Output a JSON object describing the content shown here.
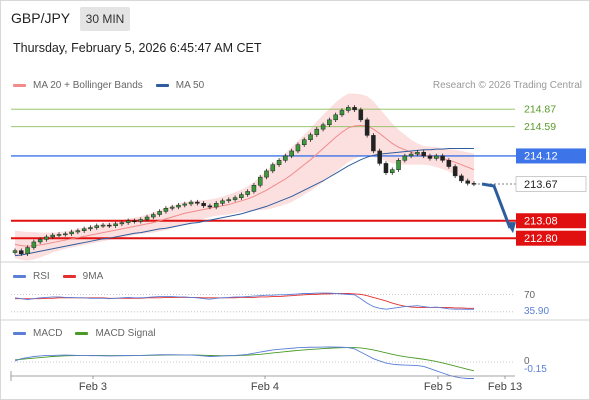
{
  "header": {
    "symbol": "GBP/JPY",
    "timeframe": "30 MIN",
    "datetime": "Thursday, February 5, 2026 6:45:47 AM CET"
  },
  "legend_main": [
    {
      "label": "MA 20 + Bollinger Bands",
      "color": "#f28a8a"
    },
    {
      "label": "MA 50",
      "color": "#2e5d9e"
    }
  ],
  "copyright": "Research © 2026 Trading Central",
  "legend_rsi": [
    {
      "label": "RSI",
      "color": "#5b7fd6"
    },
    {
      "label": "9MA",
      "color": "#e53030"
    }
  ],
  "legend_macd": [
    {
      "label": "MACD",
      "color": "#5b7fd6"
    },
    {
      "label": "MACD Signal",
      "color": "#4a9a28"
    }
  ],
  "chart_data": {
    "type": "candlestick",
    "x_ticks": [
      "Feb 3",
      "Feb 4",
      "Feb 5",
      "Feb 13"
    ],
    "ylim": [
      212.45,
      215.05
    ],
    "levels": [
      {
        "value": 214.87,
        "label": "214.87",
        "kind": "resistance-2",
        "color": "#8bbd5a"
      },
      {
        "value": 214.59,
        "label": "214.59",
        "kind": "resistance-1",
        "color": "#8bbd5a"
      },
      {
        "value": 214.12,
        "label": "214.12",
        "kind": "pivot",
        "color": "#3d74e8"
      },
      {
        "value": 213.08,
        "label": "213.08",
        "kind": "support-1",
        "color": "#e01010"
      },
      {
        "value": 212.8,
        "label": "212.80",
        "kind": "support-2",
        "color": "#e01010"
      }
    ],
    "last_price": {
      "value": 213.67,
      "label": "213.67"
    },
    "forecast_arrow": {
      "from": 213.67,
      "to": 212.93,
      "color": "#2e5d9e"
    },
    "close": [
      212.6,
      212.55,
      212.65,
      212.74,
      212.78,
      212.82,
      212.85,
      212.86,
      212.87,
      212.9,
      212.92,
      212.95,
      212.97,
      213.0,
      213.01,
      213.0,
      213.03,
      213.05,
      213.08,
      213.07,
      213.1,
      213.14,
      213.18,
      213.23,
      213.28,
      213.3,
      213.33,
      213.35,
      213.38,
      213.36,
      213.32,
      213.3,
      213.36,
      213.4,
      213.42,
      213.45,
      213.5,
      213.55,
      213.65,
      213.78,
      213.88,
      213.98,
      214.05,
      214.12,
      214.2,
      214.3,
      214.38,
      214.46,
      214.55,
      214.62,
      214.7,
      214.78,
      214.85,
      214.9,
      214.86,
      214.7,
      214.45,
      214.2,
      214.0,
      213.85,
      213.9,
      214.05,
      214.12,
      214.15,
      214.18,
      214.12,
      214.08,
      214.12,
      214.05,
      213.95,
      213.8,
      213.72,
      213.68,
      213.67
    ],
    "ma20": [
      212.7,
      212.68,
      212.67,
      212.68,
      212.69,
      212.71,
      212.73,
      212.75,
      212.77,
      212.79,
      212.81,
      212.83,
      212.85,
      212.87,
      212.89,
      212.91,
      212.93,
      212.95,
      212.97,
      212.99,
      213.01,
      213.03,
      213.05,
      213.08,
      213.11,
      213.14,
      213.17,
      213.2,
      213.22,
      213.24,
      213.26,
      213.28,
      213.3,
      213.32,
      213.34,
      213.37,
      213.4,
      213.43,
      213.47,
      213.52,
      213.57,
      213.63,
      213.69,
      213.75,
      213.82,
      213.9,
      213.98,
      214.06,
      214.15,
      214.24,
      214.33,
      214.42,
      214.5,
      214.57,
      214.6,
      214.61,
      214.6,
      214.55,
      214.48,
      214.4,
      214.32,
      214.26,
      214.22,
      214.18,
      214.15,
      214.13,
      214.12,
      214.1,
      214.08,
      214.05,
      214.02,
      213.98,
      213.94,
      213.9
    ],
    "bb_half_width": [
      0.22,
      0.23,
      0.23,
      0.22,
      0.2,
      0.18,
      0.16,
      0.15,
      0.14,
      0.14,
      0.14,
      0.14,
      0.14,
      0.14,
      0.14,
      0.14,
      0.14,
      0.14,
      0.14,
      0.14,
      0.14,
      0.15,
      0.16,
      0.17,
      0.18,
      0.18,
      0.18,
      0.18,
      0.17,
      0.16,
      0.15,
      0.14,
      0.14,
      0.15,
      0.16,
      0.17,
      0.18,
      0.2,
      0.23,
      0.27,
      0.31,
      0.35,
      0.38,
      0.41,
      0.44,
      0.46,
      0.48,
      0.5,
      0.52,
      0.54,
      0.55,
      0.56,
      0.56,
      0.55,
      0.52,
      0.5,
      0.48,
      0.45,
      0.4,
      0.36,
      0.32,
      0.28,
      0.24,
      0.2,
      0.17,
      0.15,
      0.15,
      0.16,
      0.17,
      0.18,
      0.2,
      0.22,
      0.24,
      0.26
    ],
    "ma50": [
      212.52,
      212.53,
      212.55,
      212.57,
      212.59,
      212.61,
      212.63,
      212.65,
      212.67,
      212.69,
      212.71,
      212.73,
      212.75,
      212.77,
      212.79,
      212.8,
      212.82,
      212.84,
      212.86,
      212.88,
      212.89,
      212.91,
      212.93,
      212.95,
      212.96,
      212.98,
      213.0,
      213.02,
      213.04,
      213.05,
      213.07,
      213.09,
      213.11,
      213.13,
      213.15,
      213.17,
      213.19,
      213.22,
      213.25,
      213.28,
      213.31,
      213.35,
      213.39,
      213.43,
      213.47,
      213.52,
      213.57,
      213.62,
      213.67,
      213.72,
      213.78,
      213.84,
      213.9,
      213.96,
      214.01,
      214.06,
      214.1,
      214.13,
      214.15,
      214.16,
      214.17,
      214.18,
      214.19,
      214.2,
      214.21,
      214.22,
      214.22,
      214.23,
      214.23,
      214.24,
      214.24,
      214.24,
      214.24,
      214.24
    ],
    "rsi": {
      "ylim": [
        0,
        100
      ],
      "levels": [
        {
          "value": 70,
          "label": "70"
        }
      ],
      "last_label": "35.90",
      "rsi": [
        62,
        60,
        58,
        60,
        62,
        63,
        64,
        64,
        63,
        63,
        62,
        62,
        61,
        61,
        61,
        60,
        61,
        62,
        63,
        62,
        62,
        63,
        64,
        65,
        65,
        65,
        64,
        64,
        63,
        62,
        60,
        59,
        61,
        62,
        63,
        64,
        64,
        65,
        66,
        67,
        68,
        68,
        69,
        69,
        70,
        71,
        72,
        72,
        73,
        73,
        73,
        72,
        71,
        70,
        69,
        60,
        50,
        42,
        38,
        36,
        38,
        40,
        42,
        43,
        44,
        42,
        40,
        41,
        39,
        37,
        36,
        36,
        35.9,
        35.9
      ],
      "ma9": [
        60,
        60,
        60,
        60,
        60,
        61,
        61,
        62,
        62,
        62,
        62,
        62,
        62,
        62,
        62,
        61,
        61,
        61,
        61,
        61,
        61,
        62,
        62,
        62,
        63,
        63,
        63,
        63,
        63,
        63,
        62,
        62,
        62,
        62,
        62,
        62,
        63,
        63,
        63,
        64,
        64,
        65,
        65,
        66,
        67,
        68,
        69,
        70,
        70,
        71,
        71,
        72,
        72,
        72,
        71,
        70,
        67,
        63,
        59,
        55,
        50,
        46,
        43,
        41,
        40,
        40,
        40,
        40,
        40,
        40,
        39,
        39,
        38,
        38
      ]
    },
    "macd": {
      "zero_label": "0",
      "last_label": "-0.15",
      "macd": [
        0.01,
        0.03,
        0.04,
        0.05,
        0.055,
        0.06,
        0.06,
        0.062,
        0.063,
        0.062,
        0.06,
        0.06,
        0.058,
        0.057,
        0.056,
        0.055,
        0.056,
        0.058,
        0.06,
        0.06,
        0.06,
        0.062,
        0.064,
        0.066,
        0.066,
        0.066,
        0.065,
        0.064,
        0.063,
        0.06,
        0.055,
        0.05,
        0.052,
        0.055,
        0.058,
        0.06,
        0.064,
        0.07,
        0.08,
        0.09,
        0.1,
        0.11,
        0.115,
        0.12,
        0.125,
        0.13,
        0.132,
        0.134,
        0.135,
        0.136,
        0.137,
        0.136,
        0.134,
        0.13,
        0.12,
        0.09,
        0.06,
        0.03,
        0.01,
        -0.01,
        -0.02,
        -0.025,
        -0.028,
        -0.03,
        -0.032,
        -0.04,
        -0.06,
        -0.08,
        -0.1,
        -0.12,
        -0.135,
        -0.145,
        -0.15,
        -0.15
      ],
      "signal": [
        0.02,
        0.025,
        0.03,
        0.035,
        0.04,
        0.045,
        0.05,
        0.053,
        0.056,
        0.058,
        0.059,
        0.06,
        0.06,
        0.06,
        0.059,
        0.058,
        0.058,
        0.058,
        0.058,
        0.059,
        0.06,
        0.06,
        0.061,
        0.062,
        0.063,
        0.064,
        0.064,
        0.064,
        0.064,
        0.063,
        0.061,
        0.059,
        0.058,
        0.057,
        0.057,
        0.058,
        0.06,
        0.062,
        0.066,
        0.07,
        0.076,
        0.082,
        0.088,
        0.094,
        0.1,
        0.105,
        0.11,
        0.114,
        0.118,
        0.122,
        0.125,
        0.128,
        0.13,
        0.131,
        0.131,
        0.128,
        0.12,
        0.11,
        0.097,
        0.083,
        0.07,
        0.058,
        0.048,
        0.04,
        0.033,
        0.025,
        0.015,
        0.005,
        -0.008,
        -0.022,
        -0.037,
        -0.052,
        -0.067,
        -0.08
      ]
    }
  }
}
